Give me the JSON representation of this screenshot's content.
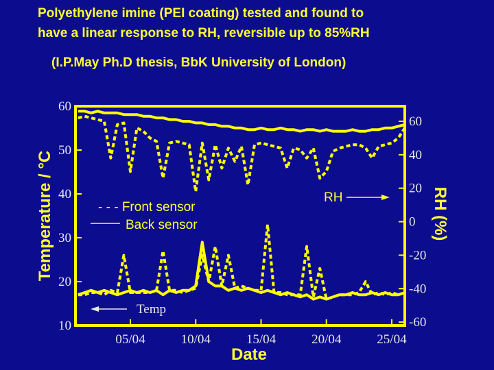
{
  "chart_data": {
    "type": "line",
    "title": [
      "Polyethylene imine (PEI coating) tested and found to",
      "have a  linear response to RH, reversible up to 85%RH"
    ],
    "subtitle": "(I.P.May Ph.D thesis, BbK University of London)",
    "x_label": "Date",
    "y_label": "Temperature / °C",
    "y2_label": "RH (%)",
    "annotations": [
      "RH",
      "- - - Front sensor",
      "Back sensor",
      "Temp"
    ],
    "color": "#ffff00",
    "grid": false,
    "x": [
      1,
      1.5,
      2,
      2.5,
      3,
      3.5,
      4,
      4.5,
      5,
      5.5,
      6,
      6.5,
      7,
      7.5,
      8,
      8.5,
      9,
      9.5,
      10,
      10.5,
      11,
      11.5,
      12,
      12.5,
      13,
      13.5,
      14,
      14.5,
      15,
      15.5,
      16,
      16.5,
      17,
      17.5,
      18,
      18.5,
      19,
      19.5,
      20,
      20.5,
      21,
      21.5,
      22,
      22.5,
      23,
      23.5,
      24,
      24.5,
      25,
      25.5,
      26
    ],
    "xlim": [
      0.8,
      26
    ],
    "xticks": [
      {
        "value": 5,
        "label": "05/04"
      },
      {
        "value": 10,
        "label": "10/04"
      },
      {
        "value": 15,
        "label": "15/04"
      },
      {
        "value": 20,
        "label": "20/04"
      },
      {
        "value": 25,
        "label": "25/04"
      }
    ],
    "ylim": [
      10,
      60
    ],
    "yticks": [
      10,
      20,
      30,
      40,
      50,
      60
    ],
    "y2lim": [
      -62,
      69
    ],
    "y2ticks": [
      -60,
      -40,
      -20,
      0,
      20,
      40,
      60
    ],
    "series": [
      {
        "axis": "y2",
        "style": "solid",
        "values": [
          66,
          66,
          65,
          66,
          65,
          65,
          65,
          64,
          64,
          64,
          63,
          63,
          62,
          62,
          61,
          61,
          60,
          60,
          59,
          59,
          58,
          58,
          57,
          57,
          56,
          56,
          55,
          55,
          56,
          55,
          55,
          56,
          55,
          55,
          54,
          55,
          55,
          54,
          55,
          54,
          54,
          54,
          55,
          54,
          54,
          55,
          55,
          56,
          56,
          57,
          58
        ]
      },
      {
        "axis": "y2",
        "style": "dashed",
        "values": [
          62,
          63,
          62,
          61,
          60,
          38,
          58,
          59,
          30,
          56,
          54,
          50,
          48,
          26,
          47,
          48,
          47,
          46,
          18,
          47,
          25,
          46,
          32,
          44,
          36,
          45,
          22,
          46,
          47,
          46,
          45,
          44,
          32,
          44,
          43,
          38,
          44,
          26,
          30,
          42,
          44,
          45,
          46,
          46,
          44,
          38,
          45,
          46,
          47,
          50,
          56
        ]
      },
      {
        "axis": "y",
        "style": "solid",
        "values": [
          17,
          17.5,
          18,
          17.5,
          18,
          17.5,
          17,
          17.5,
          18,
          17.5,
          18,
          17.5,
          18,
          17,
          18,
          17.5,
          18,
          18,
          19,
          29,
          20,
          19,
          19,
          18,
          18.5,
          18,
          18.5,
          18,
          17.5,
          18,
          17.5,
          17,
          17.5,
          17,
          16.5,
          17,
          16,
          16.5,
          16,
          16.5,
          17,
          17,
          17.5,
          17,
          17,
          17.5,
          17,
          17.5,
          17,
          17,
          17.5
        ]
      },
      {
        "axis": "y",
        "style": "dashed",
        "values": [
          17,
          17,
          17.5,
          17.5,
          17,
          18,
          17.5,
          26,
          17.5,
          17.5,
          17.5,
          17.5,
          18,
          27,
          18,
          18,
          17.5,
          18,
          18.5,
          26,
          20,
          28,
          19,
          26,
          18.5,
          19,
          18.5,
          18,
          18,
          33,
          17.5,
          17.5,
          17,
          17,
          17,
          28,
          16.5,
          23,
          16,
          16.5,
          17,
          17,
          17,
          17.5,
          20,
          17,
          17.5,
          17,
          17.5,
          17,
          17.5
        ]
      }
    ]
  }
}
